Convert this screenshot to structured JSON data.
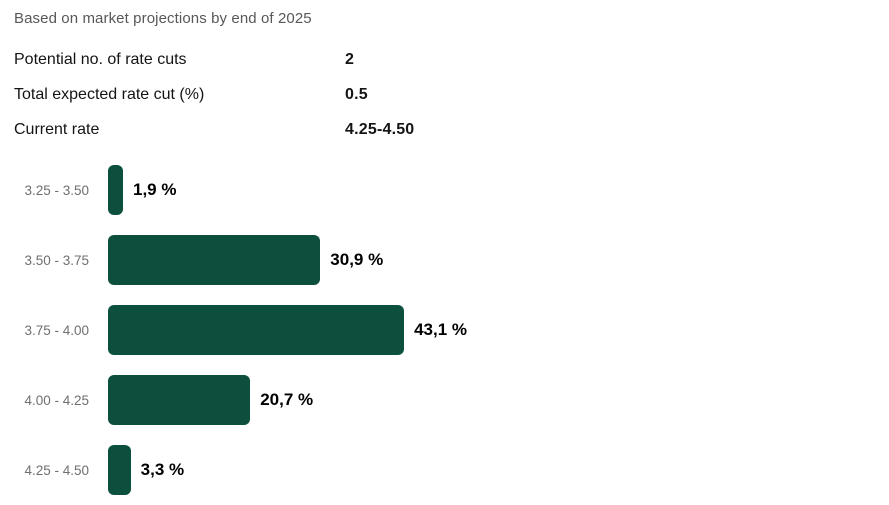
{
  "subtitle": "Based on market projections by end of 2025",
  "summary": {
    "rows": [
      {
        "label": "Potential no. of rate cuts",
        "value": "2"
      },
      {
        "label": "Total expected rate cut (%)",
        "value": "0.5"
      },
      {
        "label": "Current rate",
        "value": "4.25-4.50"
      }
    ]
  },
  "chart_data": {
    "type": "bar",
    "orientation": "horizontal",
    "title": "Based on market projections by end of 2025",
    "xlabel": "",
    "ylabel": "",
    "unit": "%",
    "xlim": [
      0,
      45
    ],
    "grid": false,
    "legend": "none",
    "categories": [
      "3.25 - 3.50",
      "3.50 - 3.75",
      "3.75 - 4.00",
      "4.00 - 4.25",
      "4.25 - 4.50"
    ],
    "values": [
      1.9,
      30.9,
      43.1,
      20.7,
      3.3
    ],
    "value_labels": [
      "1,9 %",
      "30,9 %",
      "43,1 %",
      "20,7 %",
      "3,3 %"
    ]
  },
  "colors": {
    "bar": "#0b4f3c",
    "subtitle_text": "#585858",
    "category_text": "#6f6f6f",
    "value_text": "#000000",
    "background": "#ffffff"
  }
}
